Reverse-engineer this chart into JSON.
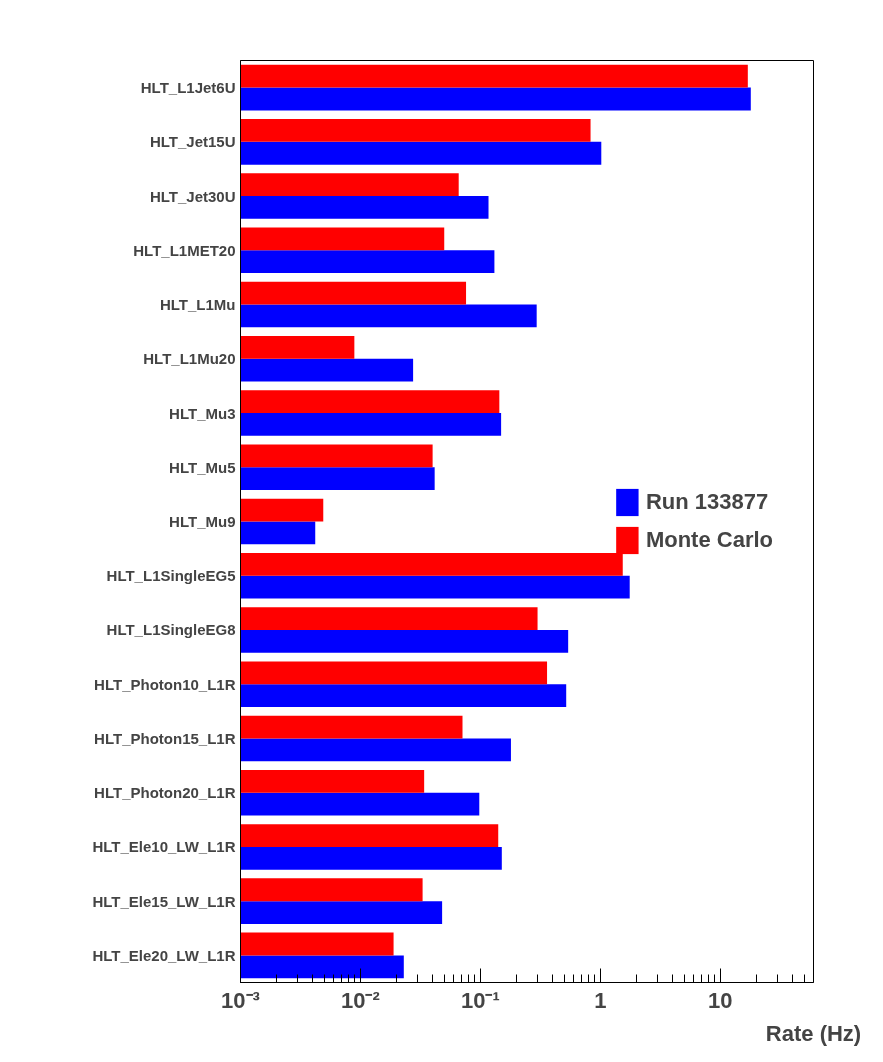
{
  "chart_data": {
    "type": "bar",
    "orientation": "horizontal",
    "log": "x",
    "xlabel": "Rate (Hz)",
    "categories": [
      "HLT_L1Jet6U",
      "HLT_Jet15U",
      "HLT_Jet30U",
      "HLT_L1MET20",
      "HLT_L1Mu",
      "HLT_L1Mu20",
      "HLT_Mu3",
      "HLT_Mu5",
      "HLT_Mu9",
      "HLT_L1SingleEG5",
      "HLT_L1SingleEG8",
      "HLT_Photon10_L1R",
      "HLT_Photon15_L1R",
      "HLT_Photon20_L1R",
      "HLT_Ele10_LW_L1R",
      "HLT_Ele15_LW_L1R",
      "HLT_Ele20_LW_L1R"
    ],
    "series": [
      {
        "name": "Run 133877",
        "color": "#0000ff",
        "values": [
          18,
          1.02,
          0.117,
          0.131,
          0.295,
          0.0275,
          0.149,
          0.0416,
          0.0042,
          1.76,
          0.54,
          0.52,
          0.18,
          0.098,
          0.151,
          0.048,
          0.023
        ]
      },
      {
        "name": "Monte Carlo",
        "color": "#ff0000",
        "values": [
          17,
          0.83,
          0.066,
          0.05,
          0.076,
          0.0089,
          0.144,
          0.04,
          0.0049,
          1.54,
          0.3,
          0.36,
          0.071,
          0.034,
          0.141,
          0.033,
          0.0189
        ]
      }
    ],
    "xlim": [
      0.001,
      60
    ],
    "xticks": [
      {
        "value": 0.001,
        "label": "10⁻³"
      },
      {
        "value": 0.01,
        "label": "10⁻²"
      },
      {
        "value": 0.1,
        "label": "10⁻¹"
      },
      1,
      10
    ],
    "grid": false,
    "legend": "right"
  }
}
